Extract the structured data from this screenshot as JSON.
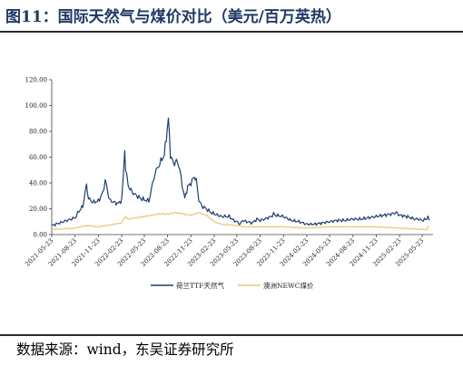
{
  "figure": {
    "title": "图11：国际天然气与煤价对比（美元/百万英热）",
    "source": "数据来源：wind，东吴证券研究所"
  },
  "colors": {
    "ttf": "#1f3e6e",
    "newc": "#e8c77a",
    "axis": "#444444"
  },
  "chart_data": {
    "type": "line",
    "title": "",
    "xlabel": "",
    "ylabel": "",
    "ylim": [
      0,
      120
    ],
    "yticks": [
      "0.00",
      "20.00",
      "40.00",
      "60.00",
      "80.00",
      "100.00",
      "120.00"
    ],
    "x_tick_labels": [
      "2021-05-23",
      "2021-08-23",
      "2021-11-23",
      "2022-02-23",
      "2022-05-23",
      "2022-08-23",
      "2022-11-23",
      "2023-02-23",
      "2023-05-23",
      "2023-08-23",
      "2023-11-23",
      "2024-02-23",
      "2024-05-23",
      "2024-08-23",
      "2024-11-23",
      "2025-02-23",
      "2025-05-23"
    ],
    "x_start": "2021-05-23",
    "grid": false,
    "legend_position": "bottom",
    "series": [
      {
        "name": "荷兰TTF天然气",
        "color": "#1f3e6e",
        "points": [
          [
            "2021-05-23",
            7
          ],
          [
            "2021-06-23",
            9
          ],
          [
            "2021-07-23",
            11
          ],
          [
            "2021-08-23",
            13
          ],
          [
            "2021-09-07",
            18
          ],
          [
            "2021-09-23",
            22
          ],
          [
            "2021-10-01",
            32
          ],
          [
            "2021-10-07",
            38
          ],
          [
            "2021-10-15",
            28
          ],
          [
            "2021-11-01",
            25
          ],
          [
            "2021-11-23",
            26
          ],
          [
            "2021-12-10",
            32
          ],
          [
            "2021-12-20",
            42
          ],
          [
            "2021-12-25",
            38
          ],
          [
            "2022-01-05",
            27
          ],
          [
            "2022-01-23",
            25
          ],
          [
            "2022-02-10",
            24
          ],
          [
            "2022-02-23",
            27
          ],
          [
            "2022-03-01",
            45
          ],
          [
            "2022-03-07",
            65
          ],
          [
            "2022-03-10",
            52
          ],
          [
            "2022-03-20",
            38
          ],
          [
            "2022-04-05",
            33
          ],
          [
            "2022-04-23",
            30
          ],
          [
            "2022-05-10",
            28
          ],
          [
            "2022-05-23",
            27
          ],
          [
            "2022-06-10",
            26
          ],
          [
            "2022-06-20",
            35
          ],
          [
            "2022-07-05",
            48
          ],
          [
            "2022-07-23",
            55
          ],
          [
            "2022-08-10",
            62
          ],
          [
            "2022-08-18",
            75
          ],
          [
            "2022-08-26",
            90
          ],
          [
            "2022-09-03",
            62
          ],
          [
            "2022-09-15",
            55
          ],
          [
            "2022-10-01",
            57
          ],
          [
            "2022-10-10",
            50
          ],
          [
            "2022-10-20",
            38
          ],
          [
            "2022-10-30",
            28
          ],
          [
            "2022-11-10",
            37
          ],
          [
            "2022-11-23",
            40
          ],
          [
            "2022-12-07",
            45
          ],
          [
            "2022-12-14",
            42
          ],
          [
            "2022-12-24",
            27
          ],
          [
            "2023-01-05",
            22
          ],
          [
            "2023-01-23",
            20
          ],
          [
            "2023-02-10",
            17
          ],
          [
            "2023-02-23",
            16
          ],
          [
            "2023-03-23",
            14
          ],
          [
            "2023-04-23",
            14
          ],
          [
            "2023-05-10",
            11
          ],
          [
            "2023-05-23",
            10
          ],
          [
            "2023-06-05",
            8
          ],
          [
            "2023-06-15",
            11
          ],
          [
            "2023-07-01",
            10
          ],
          [
            "2023-07-23",
            9
          ],
          [
            "2023-08-10",
            12
          ],
          [
            "2023-08-23",
            11
          ],
          [
            "2023-09-10",
            12
          ],
          [
            "2023-10-05",
            14
          ],
          [
            "2023-10-15",
            16
          ],
          [
            "2023-10-23",
            15
          ],
          [
            "2023-11-23",
            14
          ],
          [
            "2023-12-23",
            11
          ],
          [
            "2024-01-23",
            10
          ],
          [
            "2024-02-23",
            8
          ],
          [
            "2024-03-23",
            8
          ],
          [
            "2024-04-23",
            9
          ],
          [
            "2024-05-23",
            10
          ],
          [
            "2024-06-23",
            11
          ],
          [
            "2024-07-23",
            11
          ],
          [
            "2024-08-23",
            12
          ],
          [
            "2024-09-23",
            12
          ],
          [
            "2024-10-23",
            13
          ],
          [
            "2024-11-23",
            14
          ],
          [
            "2024-12-23",
            15
          ],
          [
            "2025-01-23",
            16
          ],
          [
            "2025-02-10",
            17
          ],
          [
            "2025-02-23",
            15
          ],
          [
            "2025-03-23",
            14
          ],
          [
            "2025-04-23",
            12
          ],
          [
            "2025-05-10",
            12
          ],
          [
            "2025-05-23",
            11
          ],
          [
            "2025-06-10",
            12
          ],
          [
            "2025-06-15",
            15
          ],
          [
            "2025-06-20",
            11
          ]
        ]
      },
      {
        "name": "澳洲NEWC煤价",
        "color": "#e8c77a",
        "points": [
          [
            "2021-05-23",
            4
          ],
          [
            "2021-08-23",
            5
          ],
          [
            "2021-10-10",
            7
          ],
          [
            "2021-11-23",
            6
          ],
          [
            "2022-01-23",
            8
          ],
          [
            "2022-02-23",
            9
          ],
          [
            "2022-03-07",
            14
          ],
          [
            "2022-03-20",
            12
          ],
          [
            "2022-05-23",
            14
          ],
          [
            "2022-07-23",
            16
          ],
          [
            "2022-08-23",
            16
          ],
          [
            "2022-09-23",
            17
          ],
          [
            "2022-10-23",
            16
          ],
          [
            "2022-11-23",
            15
          ],
          [
            "2022-12-23",
            17
          ],
          [
            "2023-01-23",
            15
          ],
          [
            "2023-02-23",
            10
          ],
          [
            "2023-03-23",
            8
          ],
          [
            "2023-05-23",
            7
          ],
          [
            "2023-06-23",
            6
          ],
          [
            "2023-08-23",
            6
          ],
          [
            "2023-11-23",
            6
          ],
          [
            "2024-02-23",
            5
          ],
          [
            "2024-05-23",
            6
          ],
          [
            "2024-08-23",
            6
          ],
          [
            "2024-11-23",
            6
          ],
          [
            "2025-02-23",
            5
          ],
          [
            "2025-05-23",
            4
          ],
          [
            "2025-06-10",
            4
          ],
          [
            "2025-06-20",
            7
          ]
        ]
      }
    ]
  }
}
